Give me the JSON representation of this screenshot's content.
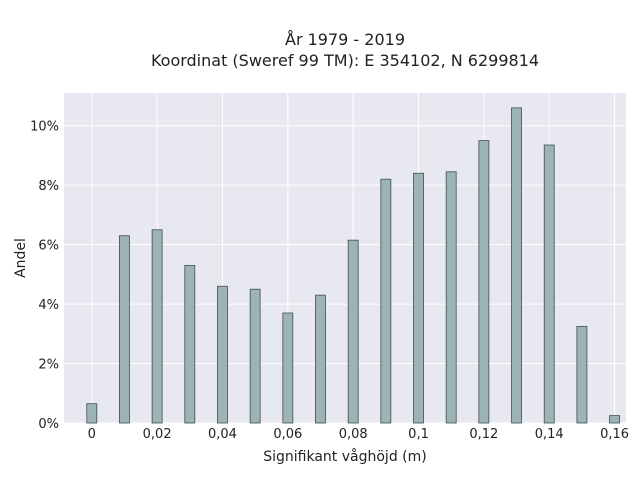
{
  "chart_data": {
    "type": "bar",
    "title": "År 1979 - 2019",
    "subtitle": "Koordinat (Sweref 99 TM): E 354102, N 6299814",
    "xlabel": "Signifikant våghöjd (m)",
    "ylabel": "Andel",
    "x": [
      0,
      0.01,
      0.02,
      0.03,
      0.04,
      0.05,
      0.06,
      0.07,
      0.08,
      0.09,
      0.1,
      0.11,
      0.12,
      0.13,
      0.14,
      0.15,
      0.16
    ],
    "values": [
      0.65,
      6.3,
      6.5,
      5.3,
      4.6,
      4.5,
      3.7,
      4.3,
      6.15,
      8.2,
      8.4,
      8.45,
      9.5,
      10.6,
      9.35,
      3.25,
      0.25
    ],
    "xlim": [
      -0.0085,
      0.1635
    ],
    "ylim": [
      0,
      11.1
    ],
    "x_ticks": [
      0,
      0.02,
      0.04,
      0.06,
      0.08,
      0.1,
      0.12,
      0.14,
      0.16
    ],
    "x_tick_labels": [
      "0",
      "0,02",
      "0,04",
      "0,06",
      "0,08",
      "0,1",
      "0,12",
      "0,14",
      "0,16"
    ],
    "y_ticks": [
      0,
      2,
      4,
      6,
      8,
      10
    ],
    "y_tick_labels": [
      "0%",
      "2%",
      "4%",
      "6%",
      "8%",
      "10%"
    ],
    "grid": true,
    "colors": {
      "bar_fill": "#9db3b5",
      "bar_stroke": "#3f4f4f",
      "plot_background": "#e8e8f0",
      "grid": "#ffffff"
    }
  }
}
